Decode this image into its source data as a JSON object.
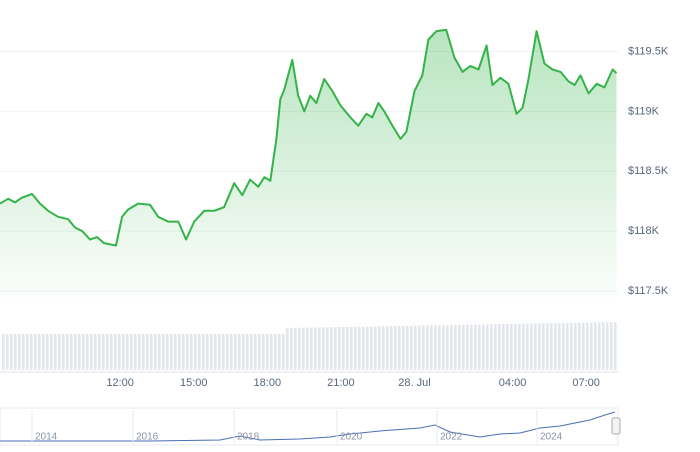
{
  "chart_data": {
    "type": "area",
    "x": [
      7.1,
      7.43,
      7.71,
      8,
      8.41,
      8.73,
      9.06,
      9.47,
      9.88,
      10.16,
      10.45,
      10.77,
      11.06,
      11.34,
      11.83,
      12.08,
      12.32,
      12.73,
      13.22,
      13.55,
      13.96,
      14.37,
      14.69,
      15.02,
      15.43,
      15.83,
      16.24,
      16.65,
      16.98,
      17.3,
      17.63,
      17.88,
      18.12,
      18.37,
      18.53,
      18.69,
      19.02,
      19.26,
      19.51,
      19.75,
      20,
      20.32,
      20.65,
      20.98,
      21.39,
      21.71,
      22.04,
      22.28,
      22.53,
      22.77,
      23.1,
      23.43,
      23.67,
      24,
      24.32,
      24.57,
      24.9,
      25.3,
      25.63,
      25.96,
      26.28,
      26.61,
      26.94,
      27.18,
      27.51,
      27.83,
      28.16,
      28.41,
      28.65,
      28.98,
      29.3,
      29.63,
      29.96,
      30.28,
      30.53,
      30.77,
      31.1,
      31.43,
      31.75,
      32.08,
      32.24
    ],
    "values": [
      118230,
      118270,
      118240,
      118280,
      118310,
      118230,
      118170,
      118120,
      118100,
      118030,
      118000,
      117930,
      117950,
      117900,
      117880,
      118120,
      118180,
      118230,
      118220,
      118120,
      118080,
      118080,
      117930,
      118080,
      118170,
      118170,
      118200,
      118400,
      118300,
      118430,
      118370,
      118450,
      118420,
      118770,
      119100,
      119180,
      119430,
      119130,
      119000,
      119130,
      119070,
      119270,
      119170,
      119050,
      118950,
      118880,
      118980,
      118950,
      119070,
      119000,
      118880,
      118770,
      118830,
      119170,
      119300,
      119600,
      119670,
      119680,
      119450,
      119330,
      119380,
      119350,
      119550,
      119220,
      119280,
      119230,
      118980,
      119030,
      119270,
      119670,
      119400,
      119350,
      119330,
      119250,
      119220,
      119300,
      119150,
      119230,
      119200,
      119350,
      119320
    ],
    "color": "#34b349",
    "xlim": [
      7.1,
      32.3
    ],
    "xticks": [
      {
        "value": 12,
        "label": "12:00"
      },
      {
        "value": 15,
        "label": "15:00"
      },
      {
        "value": 18,
        "label": "18:00"
      },
      {
        "value": 21,
        "label": "21:00"
      },
      {
        "value": 24,
        "label": "28. Jul"
      },
      {
        "value": 28,
        "label": "04:00"
      },
      {
        "value": 31,
        "label": "07:00"
      }
    ],
    "ylim": [
      117450,
      119930
    ],
    "yticks": [
      {
        "value": 117500,
        "label": "$117.5K"
      },
      {
        "value": 118000,
        "label": "$118K"
      },
      {
        "value": 118500,
        "label": "$118.5K"
      },
      {
        "value": 119000,
        "label": "$119K"
      },
      {
        "value": 119500,
        "label": "$119.5K"
      }
    ],
    "grid": true,
    "navigator": {
      "labels": [
        "2014",
        "2016",
        "2018",
        "2020",
        "2022",
        "2024"
      ]
    }
  }
}
